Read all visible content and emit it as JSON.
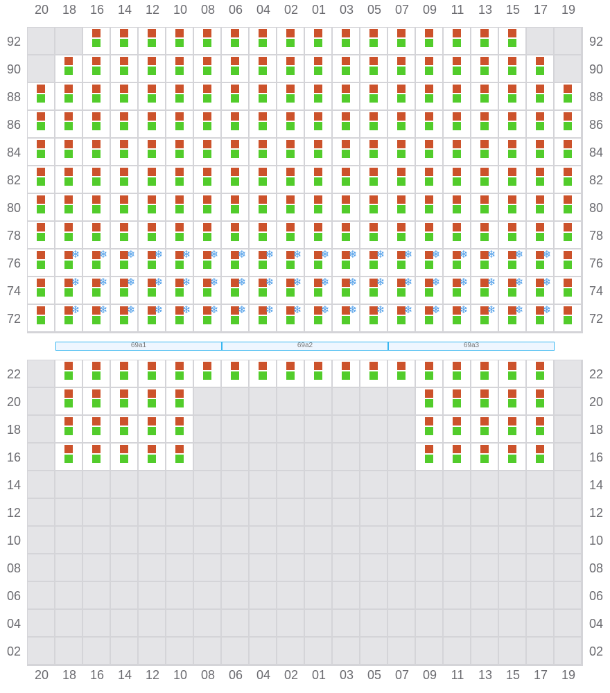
{
  "columns": [
    "20",
    "18",
    "16",
    "14",
    "12",
    "10",
    "08",
    "06",
    "04",
    "02",
    "01",
    "03",
    "05",
    "07",
    "09",
    "11",
    "13",
    "15",
    "17",
    "19"
  ],
  "legend": {
    "empty": ".",
    "container": "c",
    "reefer": "r"
  },
  "icons": {
    "reefer": "snowflake-icon"
  },
  "colors": {
    "container_top": "#cc522b",
    "container_bottom": "#52cc2b",
    "reefer": "#4a9be8",
    "empty_slot": "#e4e4e7",
    "hatch_border": "#38b6f0"
  },
  "deck": {
    "rows": [
      {
        "tier": "92",
        "slots": "..cccccccccccccccc.."
      },
      {
        "tier": "90",
        "slots": ".cccccccccccccccccc."
      },
      {
        "tier": "88",
        "slots": "cccccccccccccccccccc"
      },
      {
        "tier": "86",
        "slots": "cccccccccccccccccccc"
      },
      {
        "tier": "84",
        "slots": "cccccccccccccccccccc"
      },
      {
        "tier": "82",
        "slots": "cccccccccccccccccccc"
      },
      {
        "tier": "80",
        "slots": "cccccccccccccccccccc"
      },
      {
        "tier": "78",
        "slots": "cccccccccccccccccccc"
      },
      {
        "tier": "76",
        "slots": "crrrrrrrrrrrrrrrrrrc"
      },
      {
        "tier": "74",
        "slots": "crrrrrrrrrrrrrrrrrrc"
      },
      {
        "tier": "72",
        "slots": "crrrrrrrrrrrrrrrrrrc"
      }
    ]
  },
  "hatches": [
    "69a1",
    "69a2",
    "69a3"
  ],
  "hold": {
    "rows": [
      {
        "tier": "22",
        "slots": ".cccccccccccccccccc."
      },
      {
        "tier": "20",
        "slots": ".ccccc........ccccc."
      },
      {
        "tier": "18",
        "slots": ".ccccc........ccccc."
      },
      {
        "tier": "16",
        "slots": ".ccccc........ccccc."
      },
      {
        "tier": "14",
        "slots": "...................."
      },
      {
        "tier": "12",
        "slots": "...................."
      },
      {
        "tier": "10",
        "slots": "...................."
      },
      {
        "tier": "08",
        "slots": "...................."
      },
      {
        "tier": "06",
        "slots": "...................."
      },
      {
        "tier": "04",
        "slots": "...................."
      },
      {
        "tier": "02",
        "slots": "...................."
      }
    ]
  }
}
